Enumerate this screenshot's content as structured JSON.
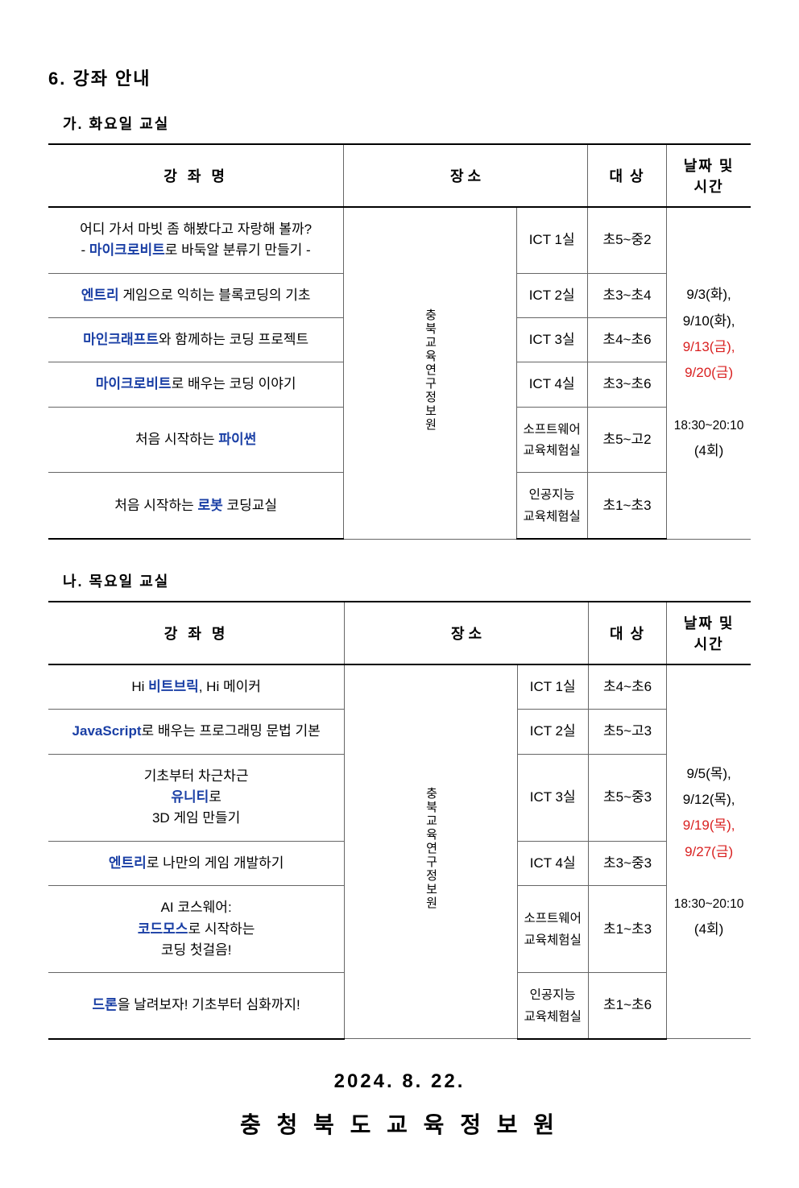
{
  "section_title": "6. 강좌 안내",
  "sub_a": "가. 화요일 교실",
  "sub_b": "나. 목요일 교실",
  "headers": {
    "course": "강 좌 명",
    "place": "장 소",
    "place_short": "",
    "target": "대 상",
    "schedule_l1": "날짜 및",
    "schedule_l2": "시간"
  },
  "location_label": "충북교육연구정보원",
  "table_a": {
    "rows": [
      {
        "pre": "어디 가서 마빗 좀 해봤다고 자랑해 볼까?",
        "br": true,
        "pre2": "- ",
        "kw": "마이크로비트",
        "post": "로 바둑알 분류기 만들기 -",
        "room": "ICT 1실",
        "target": "초5~중2"
      },
      {
        "kw": "엔트리",
        "post": " 게임으로 익히는 블록코딩의 기초",
        "room": "ICT 2실",
        "target": "초3~초4"
      },
      {
        "kw": "마인크래프트",
        "post": "와 함께하는 코딩 프로젝트",
        "room": "ICT 3실",
        "target": "초4~초6"
      },
      {
        "kw": "마이크로비트",
        "post": "로 배우는 코딩 이야기",
        "room": "ICT 4실",
        "target": "초3~초6"
      },
      {
        "pre": "처음 시작하는 ",
        "kw": "파이썬",
        "room_l1": "소프트웨어",
        "room_l2": "교육체험실",
        "target": "초5~고2"
      },
      {
        "pre": "처음 시작하는 ",
        "kw": "로봇",
        "post": " 코딩교실",
        "room_l1": "인공지능",
        "room_l2": "교육체험실",
        "target": "초1~초3"
      }
    ],
    "schedule": {
      "d1": "9/3(화),",
      "d2": "9/10(화),",
      "d3": "9/13(금),",
      "d4": "9/20(금)",
      "time": "18:30~20:10",
      "count": "(4회)"
    }
  },
  "table_b": {
    "rows": [
      {
        "pre": "Hi ",
        "kw": "비트브릭",
        "post": ", Hi 메이커",
        "room": "ICT 1실",
        "target": "초4~초6"
      },
      {
        "kw": "JavaScript",
        "post": "로 배우는 프로그래밍 문법 기본",
        "room": "ICT 2실",
        "target": "초5~고3"
      },
      {
        "pre": "기초부터 차근차근 ",
        "kw": "유니티",
        "post": "로",
        "br": true,
        "post2": "3D 게임 만들기",
        "room": "ICT 3실",
        "target": "초5~중3"
      },
      {
        "kw": "엔트리",
        "post": "로 나만의 게임 개발하기",
        "room": "ICT 4실",
        "target": "초3~중3"
      },
      {
        "pre": "AI 코스웨어: ",
        "kw": "코드모스",
        "post": "로 시작하는",
        "br": true,
        "post2": "코딩 첫걸음!",
        "room_l1": "소프트웨어",
        "room_l2": "교육체험실",
        "target": "초1~초3"
      },
      {
        "kw": "드론",
        "post": "을 날려보자! 기초부터 심화까지!",
        "room_l1": "인공지능",
        "room_l2": "교육체험실",
        "target": "초1~초6"
      }
    ],
    "schedule": {
      "d1": "9/5(목),",
      "d2": "9/12(목),",
      "d3": "9/19(목),",
      "d4": "9/27(금)",
      "time": "18:30~20:10",
      "count": "(4회)"
    }
  },
  "footer_date": "2024. 8. 22.",
  "footer_org": "충 청 북 도 교 육 정 보 원"
}
